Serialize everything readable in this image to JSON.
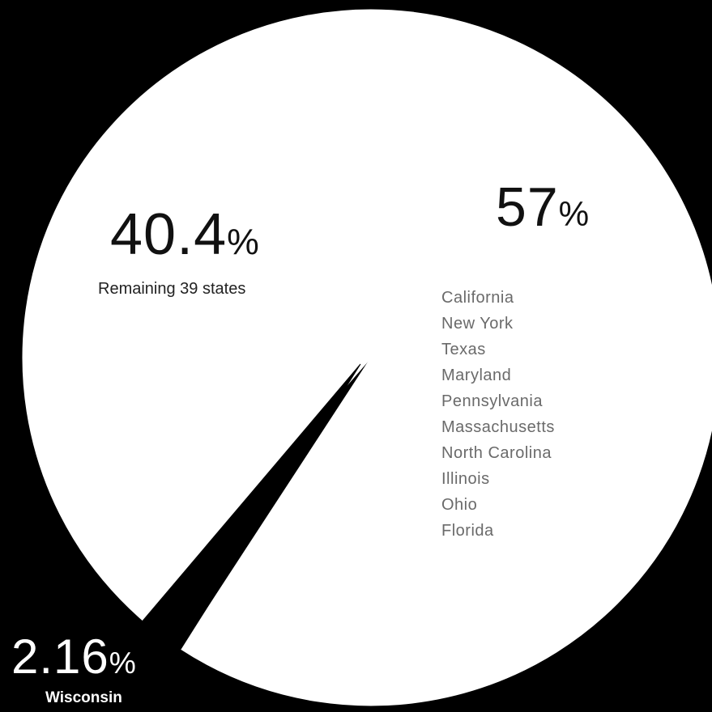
{
  "chart_data": {
    "type": "pie",
    "title": "",
    "slices": [
      {
        "value": 57,
        "percent_label": "57",
        "label": "",
        "states": [
          "California",
          "New York",
          "Texas",
          "Maryland",
          "Pennsylvania",
          "Massachusetts",
          "North Carolina",
          "Illinois",
          "Ohio",
          "Florida"
        ],
        "color": "#ffffff"
      },
      {
        "value": 2.16,
        "percent_label": "2.16",
        "label": "Wisconsin",
        "color": "#000000"
      },
      {
        "value": 40.4,
        "percent_label": "40.4",
        "label": "Remaining 39 states",
        "color": "#ffffff"
      }
    ],
    "percent_symbol": "%",
    "legend": "none",
    "colors": {
      "background": "#000000",
      "pie_fill": "#ffffff",
      "highlight_slice": "#000000"
    }
  }
}
